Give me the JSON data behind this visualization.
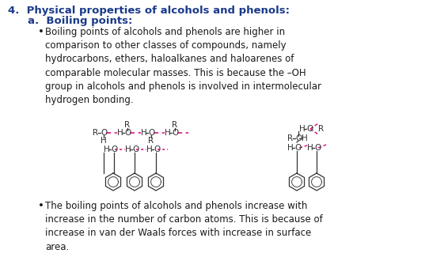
{
  "background_color": "#ffffff",
  "title": "4.  Physical properties of alcohols and phenols:",
  "title_fontsize": 9.5,
  "title_color": "#1a3a8a",
  "subtitle": "a.  Boiling points:",
  "subtitle_fontsize": 9.5,
  "bullet1_lines": [
    "Boiling points of alcohols and phenols are higher in",
    "comparison to other classes of compounds, namely",
    "hydrocarbons, ethers, haloalkanes and haloarenes of",
    "comparable molecular masses. This is because the –OH",
    "group in alcohols and phenols is involved in intermolecular",
    "hydrogen bonding."
  ],
  "bullet2_lines": [
    "The boiling points of alcohols and phenols increase with",
    "increase in the number of carbon atoms. This is because of",
    "increase in van der Waals forces with increase in surface",
    "area."
  ],
  "text_color": "#1a1a1a",
  "text_fontsize": 8.5,
  "magenta": "#e0007f",
  "diagram_color": "#333333"
}
